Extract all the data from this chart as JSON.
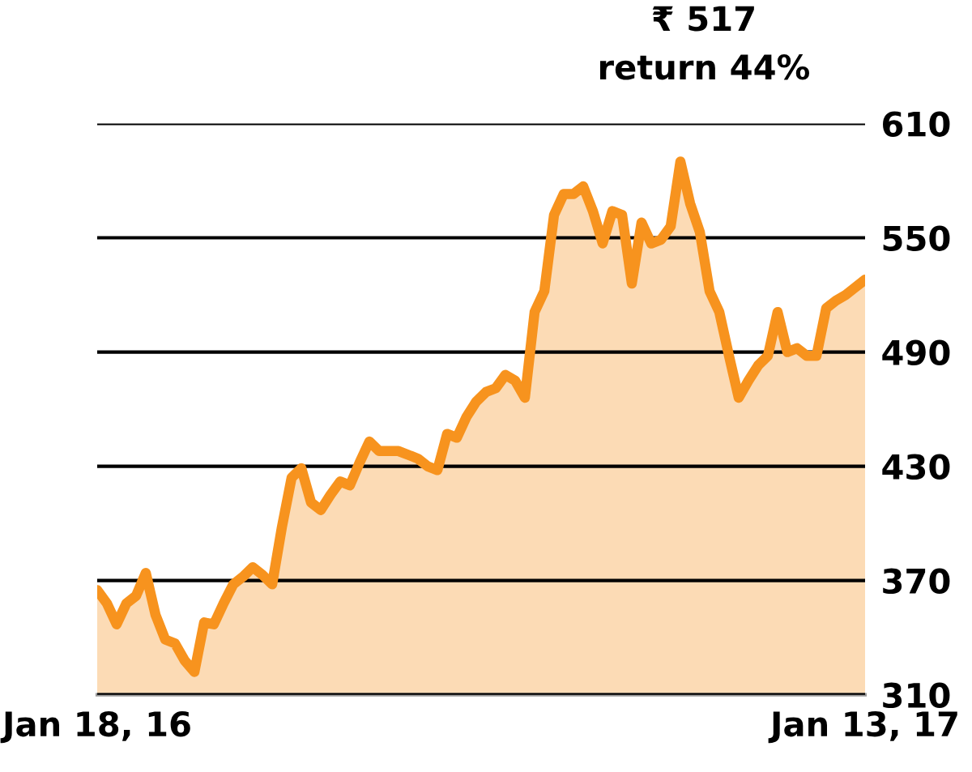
{
  "chart_data": {
    "type": "area",
    "annotations": [
      "₹ 517",
      "return 44%"
    ],
    "categories": [
      "Jan 18, 16",
      null,
      null,
      null,
      null,
      null,
      null,
      null,
      null,
      null,
      null,
      null,
      null,
      null,
      null,
      null,
      null,
      null,
      null,
      null,
      null,
      null,
      null,
      null,
      null,
      null,
      null,
      null,
      null,
      null,
      null,
      null,
      null,
      null,
      null,
      null,
      null,
      null,
      null,
      null,
      null,
      null,
      null,
      null,
      null,
      null,
      null,
      null,
      null,
      null,
      null,
      null,
      null,
      null,
      null,
      null,
      null,
      null,
      null,
      null,
      null,
      null,
      null,
      null,
      null,
      null,
      null,
      null,
      null,
      null,
      null,
      null,
      null,
      null,
      null,
      null,
      null,
      null,
      null,
      "Jan 13, 17"
    ],
    "series": [
      {
        "color": "#f7931e",
        "values": [
          365,
          358,
          347,
          358,
          362,
          374,
          352,
          339,
          337,
          328,
          322,
          348,
          347,
          358,
          368,
          372,
          377,
          373,
          368,
          398,
          424,
          429,
          411,
          407,
          415,
          422,
          420,
          432,
          443,
          438,
          438,
          438,
          436,
          434,
          430,
          428,
          447,
          445,
          456,
          464,
          469,
          471,
          478,
          475,
          466,
          511,
          522,
          562,
          573,
          573,
          577,
          564,
          547,
          564,
          562,
          526,
          558,
          547,
          549,
          556,
          590,
          568,
          553,
          522,
          511,
          488,
          466,
          475,
          483,
          488,
          511,
          490,
          492,
          488,
          488,
          513,
          517,
          520,
          524,
          528
        ]
      }
    ],
    "ylim": [
      310,
      610
    ],
    "yticks": [
      310,
      370,
      430,
      490,
      550,
      610
    ],
    "grid": "y",
    "line_style": "solid"
  }
}
